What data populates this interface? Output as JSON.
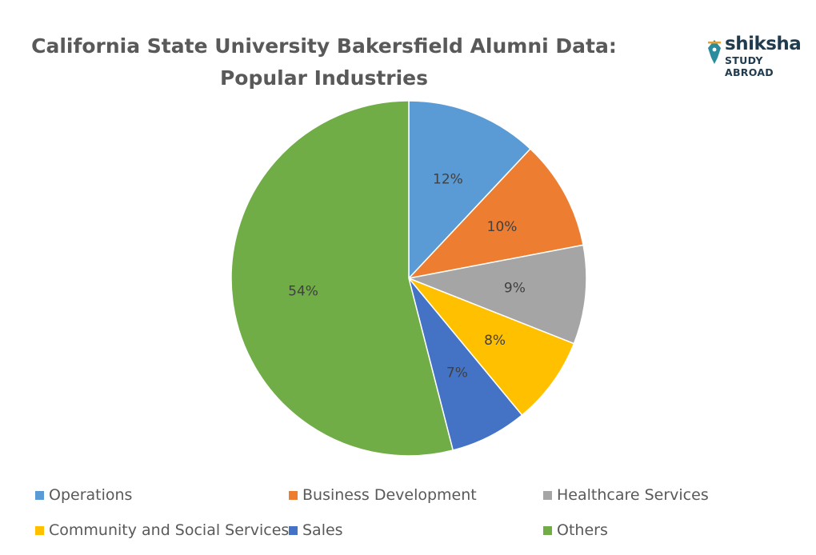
{
  "chart_data": {
    "type": "pie",
    "title": "California State University Bakersfield Alumni Data: Popular Industries",
    "categories": [
      "Operations",
      "Business Development",
      "Healthcare Services",
      "Community and Social Services",
      "Sales",
      "Others"
    ],
    "values": [
      12,
      10,
      9,
      8,
      7,
      54
    ],
    "value_labels": [
      "12%",
      "10%",
      "9%",
      "8%",
      "7%",
      "54%"
    ],
    "colors": [
      "#5b9bd5",
      "#ed7d31",
      "#a5a5a5",
      "#ffc000",
      "#4472c4",
      "#70ad47"
    ],
    "legend_position": "bottom"
  },
  "logo": {
    "name": "shiksha",
    "tagline": "STUDY ABROAD",
    "icon": "pen-nib-icon"
  }
}
